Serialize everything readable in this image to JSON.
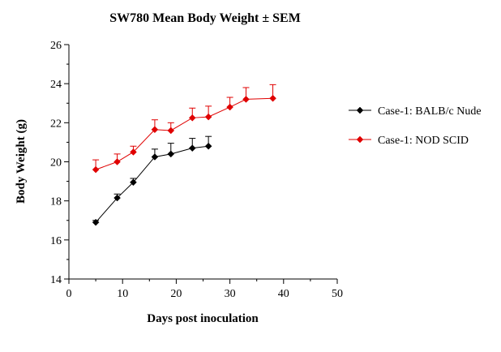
{
  "chart_data": {
    "type": "line",
    "title": "SW780 Mean Body Weight ± SEM",
    "xlabel": "Days post inoculation",
    "ylabel": "Body Weight (g)",
    "xlim": [
      0,
      50
    ],
    "ylim": [
      14,
      26
    ],
    "xticks": [
      0,
      10,
      20,
      30,
      40,
      50
    ],
    "yticks": [
      14,
      16,
      18,
      20,
      22,
      24,
      26
    ],
    "grid": false,
    "legend_position": "right",
    "series": [
      {
        "name": "Case-1: BALB/c Nude",
        "color": "#000000",
        "marker": "diamond",
        "x": [
          5,
          9,
          12,
          16,
          19,
          23,
          26
        ],
        "y": [
          16.9,
          18.15,
          18.95,
          20.25,
          20.4,
          20.7,
          20.8
        ],
        "err": [
          0.1,
          0.2,
          0.2,
          0.4,
          0.55,
          0.5,
          0.5
        ]
      },
      {
        "name": "Case-1: NOD SCID",
        "color": "#e00000",
        "marker": "diamond",
        "x": [
          5,
          9,
          12,
          16,
          19,
          23,
          26,
          30,
          33,
          38
        ],
        "y": [
          19.6,
          20.0,
          20.5,
          21.65,
          21.6,
          22.25,
          22.3,
          22.8,
          23.2,
          23.25
        ],
        "err": [
          0.5,
          0.4,
          0.3,
          0.5,
          0.4,
          0.5,
          0.55,
          0.5,
          0.6,
          0.7
        ]
      }
    ]
  }
}
